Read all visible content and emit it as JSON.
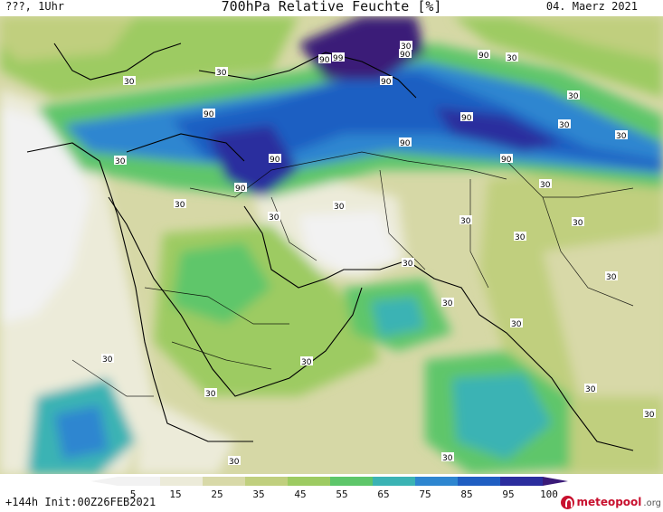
{
  "header": {
    "left": "???, 1Uhr",
    "title": "700hPa Relative Feuchte [%]",
    "date": "04. Maerz 2021"
  },
  "map": {
    "contour_labels": [
      "90",
      "99",
      "90",
      "90",
      "90",
      "90",
      "90",
      "90",
      "90",
      "90",
      "90",
      "30",
      "30",
      "30",
      "30",
      "30",
      "30",
      "30",
      "30",
      "30",
      "30",
      "30",
      "30",
      "30",
      "30",
      "30",
      "30",
      "30",
      "30",
      "30",
      "30",
      "30",
      "30",
      "30",
      "30",
      "30",
      "30"
    ]
  },
  "colorbar": {
    "ticks": [
      "5",
      "15",
      "25",
      "35",
      "45",
      "55",
      "65",
      "75",
      "85",
      "95",
      "100"
    ],
    "colors": [
      "#f2f2f2",
      "#ecebd9",
      "#d8d9a8",
      "#c0cf7e",
      "#9dcb62",
      "#5ec66a",
      "#3bb3b4",
      "#2e86d0",
      "#1f5ec2",
      "#2b2d9e",
      "#3a1a78"
    ]
  },
  "footer": {
    "run": "+144h Init:00Z26FEB2021",
    "brand_main": "meteopool",
    "brand_tld": ".org"
  }
}
